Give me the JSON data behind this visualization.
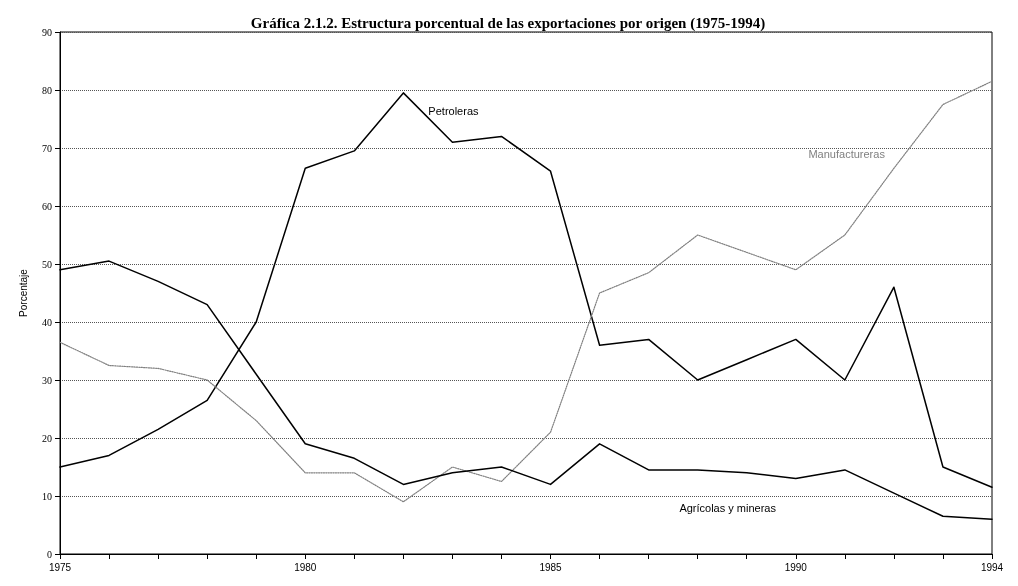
{
  "chart_data": {
    "type": "line",
    "title": "Gráfica 2.1.2. Estructura porcentual de las exportaciones por origen (1975-1994)",
    "ylabel": "Porcentaje",
    "x": [
      1975,
      1976,
      1977,
      1978,
      1979,
      1980,
      1981,
      1982,
      1983,
      1984,
      1985,
      1986,
      1987,
      1988,
      1989,
      1990,
      1991,
      1992,
      1993,
      1994
    ],
    "xlim": [
      1975,
      1994
    ],
    "xticks": [
      1975,
      {
        "value": 1976,
        "label": null
      },
      {
        "value": 1977,
        "label": null
      },
      {
        "value": 1978,
        "label": null
      },
      {
        "value": 1979,
        "label": null
      },
      1980,
      {
        "value": 1981,
        "label": null
      },
      {
        "value": 1982,
        "label": null
      },
      {
        "value": 1983,
        "label": null
      },
      {
        "value": 1984,
        "label": null
      },
      1985,
      {
        "value": 1986,
        "label": null
      },
      {
        "value": 1987,
        "label": null
      },
      {
        "value": 1988,
        "label": null
      },
      {
        "value": 1989,
        "label": null
      },
      1990,
      {
        "value": 1991,
        "label": null
      },
      {
        "value": 1992,
        "label": null
      },
      {
        "value": 1993,
        "label": null
      },
      1994
    ],
    "ylim": [
      0,
      90
    ],
    "yticks": [
      0,
      10,
      20,
      30,
      40,
      50,
      60,
      70,
      80,
      90
    ],
    "grid": "y",
    "legend": false,
    "marker": "none",
    "series": [
      {
        "name": "Petroleras",
        "color": "#000000",
        "line_style": "solid",
        "values": [
          15,
          17,
          21.5,
          26.5,
          40,
          66.5,
          69.5,
          79.5,
          71,
          72,
          66,
          36,
          37,
          30,
          33.5,
          37,
          30,
          46,
          15,
          11.5
        ]
      },
      {
        "name": "Manufactureras",
        "color": "#808080",
        "line_style": "dotted",
        "values": [
          36.5,
          32.5,
          32,
          30,
          23,
          14,
          14,
          9,
          15,
          12.5,
          21,
          45,
          48.5,
          55,
          52,
          49,
          55,
          66.5,
          77.5,
          81.5
        ]
      },
      {
        "name": "Agrícolas y mineras",
        "color": "#000000",
        "line_style": "solid",
        "values": [
          49,
          50.5,
          47,
          43,
          31,
          19,
          16.5,
          12,
          14,
          15,
          12,
          19,
          14.5,
          14.5,
          14,
          13,
          14.5,
          10.5,
          6.5,
          6
        ]
      }
    ]
  }
}
